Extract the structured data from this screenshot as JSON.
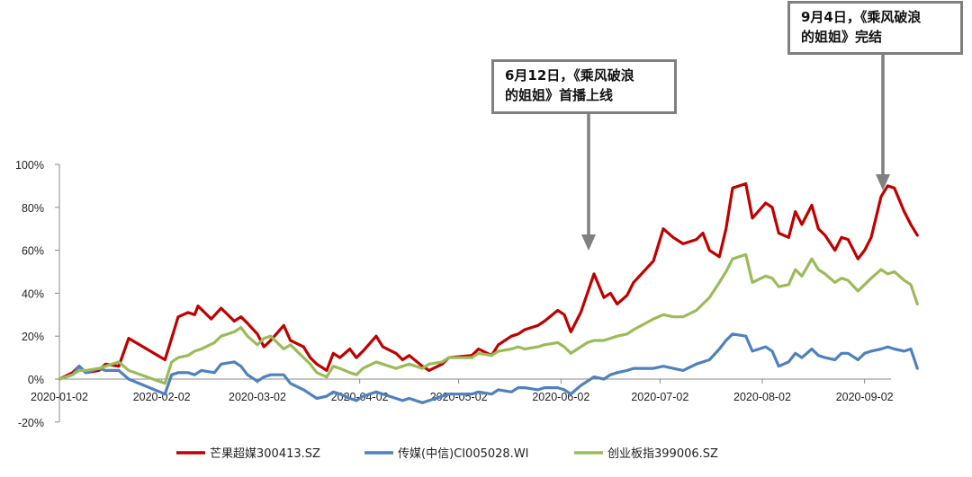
{
  "chart_data": {
    "type": "line",
    "title": "",
    "xlabel": "",
    "ylabel": "",
    "ylim": [
      -20,
      100
    ],
    "y_ticks": [
      "100%",
      "80%",
      "60%",
      "40%",
      "20%",
      "0%",
      "-20%"
    ],
    "x_ticks": [
      "2020-01-02",
      "2020-02-02",
      "2020-03-02",
      "2020-04-02",
      "2020-05-02",
      "2020-06-02",
      "2020-07-02",
      "2020-08-02",
      "2020-09-02"
    ],
    "x_range": [
      "2020-01-02",
      "2020-09-10"
    ],
    "grid": false,
    "legend_position": "bottom",
    "series": [
      {
        "name": "芒果超媒300413.SZ",
        "color": "#c00000",
        "points": [
          [
            "2020-01-02",
            0
          ],
          [
            "2020-01-06",
            3
          ],
          [
            "2020-01-08",
            6
          ],
          [
            "2020-01-10",
            3
          ],
          [
            "2020-01-14",
            4
          ],
          [
            "2020-01-16",
            7
          ],
          [
            "2020-01-20",
            6
          ],
          [
            "2020-01-23",
            19
          ],
          [
            "2020-02-03",
            9
          ],
          [
            "2020-02-05",
            19
          ],
          [
            "2020-02-07",
            29
          ],
          [
            "2020-02-10",
            31
          ],
          [
            "2020-02-12",
            30
          ],
          [
            "2020-02-13",
            34
          ],
          [
            "2020-02-17",
            28
          ],
          [
            "2020-02-20",
            33
          ],
          [
            "2020-02-24",
            27
          ],
          [
            "2020-02-26",
            29
          ],
          [
            "2020-02-28",
            26
          ],
          [
            "2020-03-02",
            21
          ],
          [
            "2020-03-04",
            15
          ],
          [
            "2020-03-06",
            18
          ],
          [
            "2020-03-10",
            25
          ],
          [
            "2020-03-12",
            18
          ],
          [
            "2020-03-16",
            15
          ],
          [
            "2020-03-18",
            10
          ],
          [
            "2020-03-20",
            7
          ],
          [
            "2020-03-23",
            4
          ],
          [
            "2020-03-25",
            12
          ],
          [
            "2020-03-27",
            10
          ],
          [
            "2020-03-30",
            14
          ],
          [
            "2020-04-01",
            10
          ],
          [
            "2020-04-03",
            13
          ],
          [
            "2020-04-07",
            20
          ],
          [
            "2020-04-09",
            15
          ],
          [
            "2020-04-13",
            12
          ],
          [
            "2020-04-15",
            9
          ],
          [
            "2020-04-17",
            11
          ],
          [
            "2020-04-21",
            6
          ],
          [
            "2020-04-23",
            4
          ],
          [
            "2020-04-27",
            7
          ],
          [
            "2020-04-29",
            10
          ],
          [
            "2020-05-06",
            11
          ],
          [
            "2020-05-08",
            14
          ],
          [
            "2020-05-12",
            11
          ],
          [
            "2020-05-14",
            16
          ],
          [
            "2020-05-18",
            20
          ],
          [
            "2020-05-20",
            21
          ],
          [
            "2020-05-22",
            23
          ],
          [
            "2020-05-26",
            25
          ],
          [
            "2020-05-28",
            27
          ],
          [
            "2020-06-01",
            32
          ],
          [
            "2020-06-03",
            30
          ],
          [
            "2020-06-05",
            22
          ],
          [
            "2020-06-08",
            31
          ],
          [
            "2020-06-10",
            40
          ],
          [
            "2020-06-12",
            49
          ],
          [
            "2020-06-15",
            38
          ],
          [
            "2020-06-17",
            40
          ],
          [
            "2020-06-19",
            35
          ],
          [
            "2020-06-22",
            39
          ],
          [
            "2020-06-24",
            45
          ],
          [
            "2020-06-30",
            55
          ],
          [
            "2020-07-03",
            70
          ],
          [
            "2020-07-06",
            66
          ],
          [
            "2020-07-09",
            63
          ],
          [
            "2020-07-13",
            65
          ],
          [
            "2020-07-15",
            68
          ],
          [
            "2020-07-17",
            60
          ],
          [
            "2020-07-20",
            57
          ],
          [
            "2020-07-22",
            70
          ],
          [
            "2020-07-24",
            89
          ],
          [
            "2020-07-28",
            91
          ],
          [
            "2020-07-30",
            75
          ],
          [
            "2020-08-03",
            82
          ],
          [
            "2020-08-05",
            80
          ],
          [
            "2020-08-07",
            68
          ],
          [
            "2020-08-10",
            66
          ],
          [
            "2020-08-12",
            78
          ],
          [
            "2020-08-14",
            72
          ],
          [
            "2020-08-17",
            81
          ],
          [
            "2020-08-19",
            70
          ],
          [
            "2020-08-21",
            67
          ],
          [
            "2020-08-24",
            60
          ],
          [
            "2020-08-26",
            66
          ],
          [
            "2020-08-28",
            65
          ],
          [
            "2020-08-31",
            56
          ],
          [
            "2020-09-02",
            60
          ],
          [
            "2020-09-04",
            66
          ],
          [
            "2020-09-07",
            85
          ],
          [
            "2020-09-09",
            90
          ],
          [
            "2020-09-11",
            89
          ],
          [
            "2020-09-14",
            78
          ],
          [
            "2020-09-16",
            72
          ],
          [
            "2020-09-18",
            67
          ]
        ]
      },
      {
        "name": "传媒(中信)CI005028.WI",
        "color": "#4f81bd",
        "points": [
          [
            "2020-01-02",
            0
          ],
          [
            "2020-01-06",
            2
          ],
          [
            "2020-01-08",
            6
          ],
          [
            "2020-01-10",
            3
          ],
          [
            "2020-01-14",
            5
          ],
          [
            "2020-01-16",
            4
          ],
          [
            "2020-01-20",
            4
          ],
          [
            "2020-01-23",
            0
          ],
          [
            "2020-02-03",
            -7
          ],
          [
            "2020-02-05",
            2
          ],
          [
            "2020-02-07",
            3
          ],
          [
            "2020-02-10",
            3
          ],
          [
            "2020-02-12",
            2
          ],
          [
            "2020-02-14",
            4
          ],
          [
            "2020-02-18",
            3
          ],
          [
            "2020-02-20",
            7
          ],
          [
            "2020-02-24",
            8
          ],
          [
            "2020-02-26",
            6
          ],
          [
            "2020-02-28",
            2
          ],
          [
            "2020-03-02",
            -1
          ],
          [
            "2020-03-04",
            1
          ],
          [
            "2020-03-06",
            2
          ],
          [
            "2020-03-10",
            2
          ],
          [
            "2020-03-12",
            -2
          ],
          [
            "2020-03-16",
            -5
          ],
          [
            "2020-03-18",
            -7
          ],
          [
            "2020-03-20",
            -9
          ],
          [
            "2020-03-23",
            -8
          ],
          [
            "2020-03-25",
            -6
          ],
          [
            "2020-03-27",
            -7
          ],
          [
            "2020-03-30",
            -9
          ],
          [
            "2020-04-01",
            -10
          ],
          [
            "2020-04-03",
            -8
          ],
          [
            "2020-04-07",
            -6
          ],
          [
            "2020-04-09",
            -7
          ],
          [
            "2020-04-13",
            -9
          ],
          [
            "2020-04-15",
            -10
          ],
          [
            "2020-04-17",
            -9
          ],
          [
            "2020-04-21",
            -11
          ],
          [
            "2020-04-23",
            -10
          ],
          [
            "2020-04-27",
            -8
          ],
          [
            "2020-04-29",
            -7
          ],
          [
            "2020-05-06",
            -7
          ],
          [
            "2020-05-08",
            -6
          ],
          [
            "2020-05-12",
            -7
          ],
          [
            "2020-05-14",
            -5
          ],
          [
            "2020-05-18",
            -6
          ],
          [
            "2020-05-20",
            -4
          ],
          [
            "2020-05-22",
            -4
          ],
          [
            "2020-05-26",
            -5
          ],
          [
            "2020-05-28",
            -4
          ],
          [
            "2020-06-01",
            -4
          ],
          [
            "2020-06-03",
            -5
          ],
          [
            "2020-06-05",
            -7
          ],
          [
            "2020-06-08",
            -3
          ],
          [
            "2020-06-10",
            -1
          ],
          [
            "2020-06-12",
            1
          ],
          [
            "2020-06-15",
            0
          ],
          [
            "2020-06-17",
            2
          ],
          [
            "2020-06-19",
            3
          ],
          [
            "2020-06-22",
            4
          ],
          [
            "2020-06-24",
            5
          ],
          [
            "2020-06-30",
            5
          ],
          [
            "2020-07-03",
            6
          ],
          [
            "2020-07-06",
            5
          ],
          [
            "2020-07-09",
            4
          ],
          [
            "2020-07-13",
            7
          ],
          [
            "2020-07-15",
            8
          ],
          [
            "2020-07-17",
            9
          ],
          [
            "2020-07-20",
            14
          ],
          [
            "2020-07-22",
            18
          ],
          [
            "2020-07-24",
            21
          ],
          [
            "2020-07-28",
            20
          ],
          [
            "2020-07-30",
            13
          ],
          [
            "2020-08-03",
            15
          ],
          [
            "2020-08-05",
            13
          ],
          [
            "2020-08-07",
            6
          ],
          [
            "2020-08-10",
            8
          ],
          [
            "2020-08-12",
            12
          ],
          [
            "2020-08-14",
            10
          ],
          [
            "2020-08-17",
            14
          ],
          [
            "2020-08-19",
            11
          ],
          [
            "2020-08-21",
            10
          ],
          [
            "2020-08-24",
            9
          ],
          [
            "2020-08-26",
            12
          ],
          [
            "2020-08-28",
            12
          ],
          [
            "2020-08-31",
            9
          ],
          [
            "2020-09-02",
            12
          ],
          [
            "2020-09-04",
            13
          ],
          [
            "2020-09-07",
            14
          ],
          [
            "2020-09-09",
            15
          ],
          [
            "2020-09-11",
            14
          ],
          [
            "2020-09-14",
            13
          ],
          [
            "2020-09-16",
            14
          ],
          [
            "2020-09-18",
            5
          ]
        ]
      },
      {
        "name": "创业板指399006.SZ",
        "color": "#9bbb59",
        "points": [
          [
            "2020-01-02",
            0
          ],
          [
            "2020-01-06",
            2
          ],
          [
            "2020-01-08",
            4
          ],
          [
            "2020-01-10",
            4
          ],
          [
            "2020-01-14",
            5
          ],
          [
            "2020-01-16",
            6
          ],
          [
            "2020-01-20",
            8
          ],
          [
            "2020-01-23",
            4
          ],
          [
            "2020-02-03",
            -2
          ],
          [
            "2020-02-05",
            8
          ],
          [
            "2020-02-07",
            10
          ],
          [
            "2020-02-10",
            11
          ],
          [
            "2020-02-12",
            13
          ],
          [
            "2020-02-14",
            14
          ],
          [
            "2020-02-18",
            17
          ],
          [
            "2020-02-20",
            20
          ],
          [
            "2020-02-24",
            22
          ],
          [
            "2020-02-26",
            24
          ],
          [
            "2020-02-28",
            20
          ],
          [
            "2020-03-02",
            16
          ],
          [
            "2020-03-04",
            19
          ],
          [
            "2020-03-06",
            20
          ],
          [
            "2020-03-10",
            14
          ],
          [
            "2020-03-12",
            16
          ],
          [
            "2020-03-16",
            10
          ],
          [
            "2020-03-18",
            7
          ],
          [
            "2020-03-20",
            3
          ],
          [
            "2020-03-23",
            1
          ],
          [
            "2020-03-25",
            6
          ],
          [
            "2020-03-27",
            5
          ],
          [
            "2020-03-30",
            3
          ],
          [
            "2020-04-01",
            2
          ],
          [
            "2020-04-03",
            5
          ],
          [
            "2020-04-07",
            8
          ],
          [
            "2020-04-09",
            7
          ],
          [
            "2020-04-13",
            5
          ],
          [
            "2020-04-15",
            6
          ],
          [
            "2020-04-17",
            7
          ],
          [
            "2020-04-21",
            5
          ],
          [
            "2020-04-23",
            7
          ],
          [
            "2020-04-27",
            8
          ],
          [
            "2020-04-29",
            10
          ],
          [
            "2020-05-06",
            10
          ],
          [
            "2020-05-08",
            12
          ],
          [
            "2020-05-12",
            11
          ],
          [
            "2020-05-14",
            13
          ],
          [
            "2020-05-18",
            14
          ],
          [
            "2020-05-20",
            15
          ],
          [
            "2020-05-22",
            14
          ],
          [
            "2020-05-26",
            15
          ],
          [
            "2020-05-28",
            16
          ],
          [
            "2020-06-01",
            17
          ],
          [
            "2020-06-03",
            15
          ],
          [
            "2020-06-05",
            12
          ],
          [
            "2020-06-08",
            15
          ],
          [
            "2020-06-10",
            17
          ],
          [
            "2020-06-12",
            18
          ],
          [
            "2020-06-15",
            18
          ],
          [
            "2020-06-17",
            19
          ],
          [
            "2020-06-19",
            20
          ],
          [
            "2020-06-22",
            21
          ],
          [
            "2020-06-24",
            23
          ],
          [
            "2020-06-30",
            28
          ],
          [
            "2020-07-03",
            30
          ],
          [
            "2020-07-06",
            29
          ],
          [
            "2020-07-09",
            29
          ],
          [
            "2020-07-13",
            32
          ],
          [
            "2020-07-15",
            35
          ],
          [
            "2020-07-17",
            38
          ],
          [
            "2020-07-20",
            45
          ],
          [
            "2020-07-22",
            50
          ],
          [
            "2020-07-24",
            56
          ],
          [
            "2020-07-28",
            58
          ],
          [
            "2020-07-30",
            45
          ],
          [
            "2020-08-03",
            48
          ],
          [
            "2020-08-05",
            47
          ],
          [
            "2020-08-07",
            43
          ],
          [
            "2020-08-10",
            44
          ],
          [
            "2020-08-12",
            51
          ],
          [
            "2020-08-14",
            48
          ],
          [
            "2020-08-17",
            56
          ],
          [
            "2020-08-19",
            51
          ],
          [
            "2020-08-21",
            49
          ],
          [
            "2020-08-24",
            45
          ],
          [
            "2020-08-26",
            47
          ],
          [
            "2020-08-28",
            46
          ],
          [
            "2020-08-31",
            41
          ],
          [
            "2020-09-02",
            44
          ],
          [
            "2020-09-04",
            47
          ],
          [
            "2020-09-07",
            51
          ],
          [
            "2020-09-09",
            49
          ],
          [
            "2020-09-11",
            50
          ],
          [
            "2020-09-14",
            46
          ],
          [
            "2020-09-16",
            44
          ],
          [
            "2020-09-18",
            35
          ]
        ]
      }
    ],
    "annotations": [
      {
        "lines": [
          "6月12日，《乘风破浪",
          "的姐姐》首播上线"
        ],
        "date": "2020-06-12"
      },
      {
        "lines": [
          "9月4日，《乘风破浪",
          "的姐姐》完结"
        ],
        "date": "2020-09-04"
      }
    ]
  }
}
